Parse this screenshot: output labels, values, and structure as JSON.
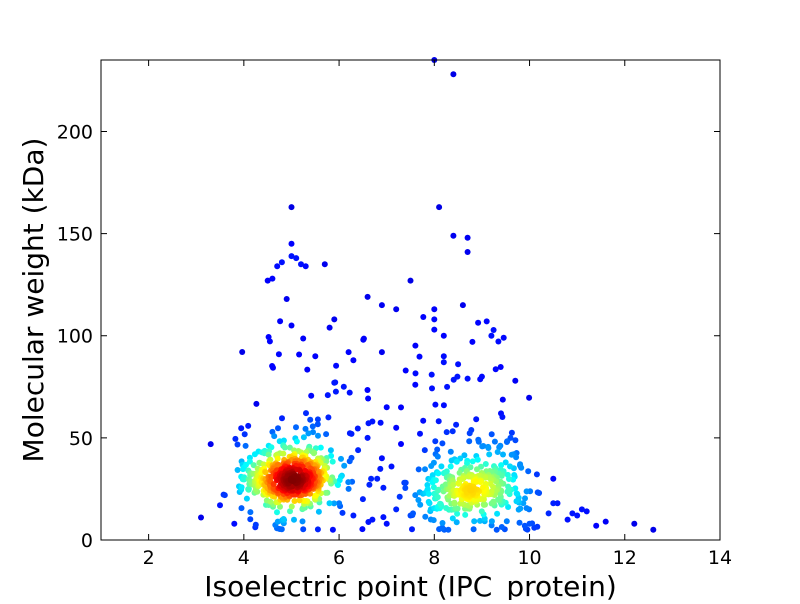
{
  "chart_data": {
    "type": "scatter",
    "title": "",
    "xlabel": "Isoelectric point (IPC_protein)",
    "ylabel": "Molecular weight (kDa)",
    "xlim": [
      1,
      14
    ],
    "ylim": [
      0,
      235
    ],
    "xticks": [
      2,
      4,
      6,
      8,
      10,
      12,
      14
    ],
    "yticks": [
      0,
      50,
      100,
      150,
      200
    ],
    "grid": false,
    "legend": "none",
    "colormap": "jet (point density)",
    "colors": {
      "low_density": "#0000cd",
      "mid_low": "#00ffff",
      "mid": "#adff2f",
      "mid_high": "#ffa500",
      "high_density": "#8b0000"
    },
    "clusters": [
      {
        "center": [
          5.0,
          30
        ],
        "spread": [
          0.5,
          11
        ],
        "count": 520,
        "peak_density": "high"
      },
      {
        "center": [
          8.8,
          25
        ],
        "spread": [
          0.55,
          14
        ],
        "count": 330,
        "peak_density": "medium"
      }
    ],
    "outliers": [
      [
        8.0,
        235
      ],
      [
        8.4,
        228
      ],
      [
        5.0,
        163
      ],
      [
        8.1,
        163
      ],
      [
        8.4,
        149
      ],
      [
        8.7,
        148
      ],
      [
        8.7,
        141
      ],
      [
        5.0,
        145
      ],
      [
        5.0,
        139
      ],
      [
        5.1,
        138
      ],
      [
        5.2,
        135
      ],
      [
        5.3,
        134
      ],
      [
        5.7,
        135
      ],
      [
        4.8,
        136
      ],
      [
        4.7,
        134
      ],
      [
        4.5,
        127
      ],
      [
        4.6,
        128
      ],
      [
        7.5,
        127
      ],
      [
        6.6,
        119
      ],
      [
        4.9,
        118
      ],
      [
        6.9,
        115
      ],
      [
        7.2,
        113
      ],
      [
        8.0,
        113
      ],
      [
        8.6,
        115
      ],
      [
        8.0,
        108
      ],
      [
        9.1,
        107
      ],
      [
        5.9,
        108
      ],
      [
        5.8,
        104
      ],
      [
        5.0,
        105
      ],
      [
        9.2,
        100
      ],
      [
        8.0,
        103
      ],
      [
        8.2,
        100
      ],
      [
        8.8,
        97
      ],
      [
        6.9,
        92
      ],
      [
        8.2,
        90
      ],
      [
        6.2,
        92
      ],
      [
        6.3,
        88
      ],
      [
        5.5,
        90
      ],
      [
        8.2,
        87
      ],
      [
        7.4,
        83
      ],
      [
        7.6,
        76
      ],
      [
        8.5,
        86
      ],
      [
        9.7,
        78
      ],
      [
        9.0,
        80
      ],
      [
        5.9,
        77
      ],
      [
        6.1,
        75
      ],
      [
        8.7,
        79
      ],
      [
        9.4,
        62
      ],
      [
        9.6,
        50
      ],
      [
        9.5,
        38
      ],
      [
        10.5,
        30
      ],
      [
        10.2,
        23
      ],
      [
        10.5,
        18
      ],
      [
        10.9,
        13
      ],
      [
        11.0,
        12
      ],
      [
        11.2,
        14
      ],
      [
        11.4,
        7
      ],
      [
        11.6,
        9
      ],
      [
        12.2,
        8
      ],
      [
        12.6,
        5
      ],
      [
        3.1,
        11
      ],
      [
        3.6,
        22
      ],
      [
        3.5,
        17
      ],
      [
        3.8,
        8
      ],
      [
        10.4,
        13
      ],
      [
        10.8,
        10
      ],
      [
        10.0,
        8
      ],
      [
        9.9,
        7
      ],
      [
        10.1,
        6
      ],
      [
        11.1,
        15
      ],
      [
        7.0,
        65
      ],
      [
        6.7,
        58
      ],
      [
        7.2,
        55
      ],
      [
        7.7,
        52
      ],
      [
        7.3,
        47
      ],
      [
        6.6,
        50
      ],
      [
        7.8,
        44
      ],
      [
        6.9,
        40
      ],
      [
        7.1,
        36
      ],
      [
        6.4,
        44
      ],
      [
        6.8,
        30
      ],
      [
        7.4,
        28
      ],
      [
        7.6,
        22
      ],
      [
        6.5,
        20
      ],
      [
        7.2,
        15
      ],
      [
        6.7,
        10
      ],
      [
        7.0,
        8
      ],
      [
        7.5,
        12
      ],
      [
        7.9,
        18
      ],
      [
        6.2,
        25
      ],
      [
        6.0,
        18
      ],
      [
        6.3,
        12
      ]
    ],
    "background_points": {
      "x_range": [
        3.8,
        10.0
      ],
      "y_range": [
        5,
        110
      ],
      "count": 140
    }
  }
}
